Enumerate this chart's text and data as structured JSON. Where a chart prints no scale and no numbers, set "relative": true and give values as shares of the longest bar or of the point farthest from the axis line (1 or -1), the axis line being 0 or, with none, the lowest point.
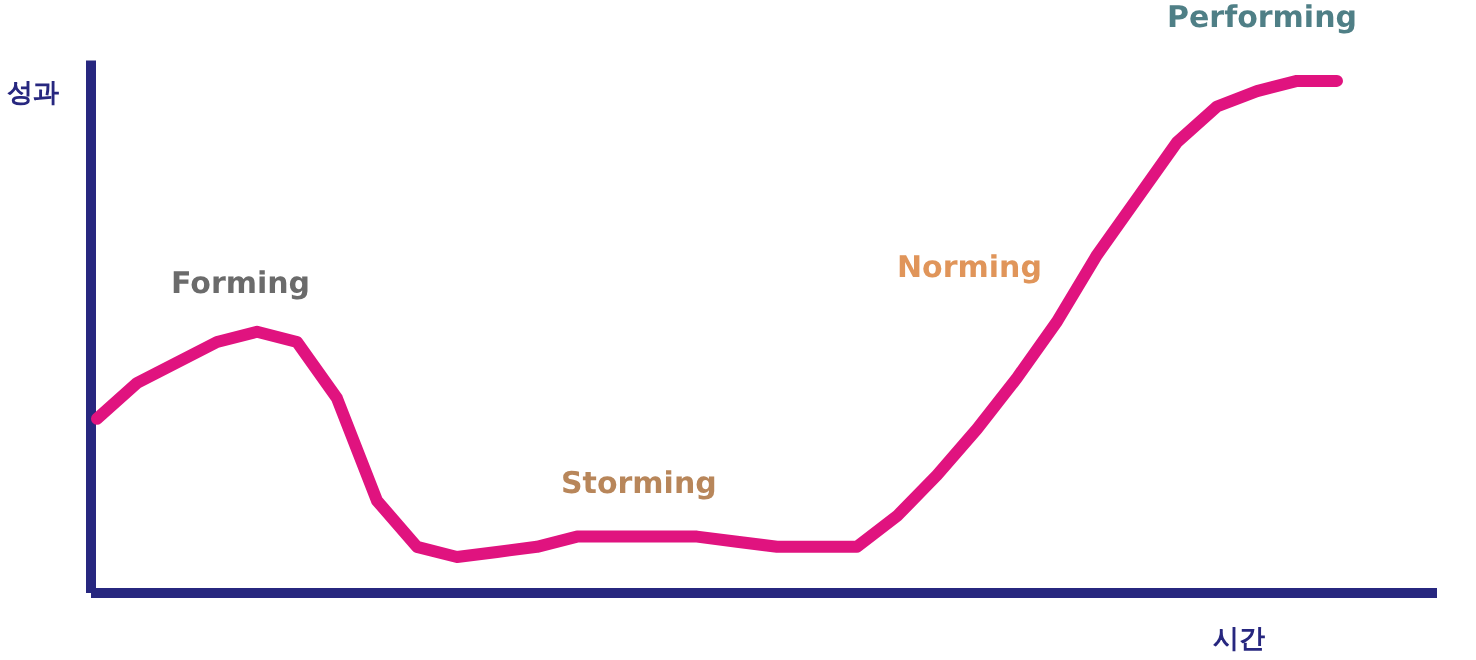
{
  "chart_data": {
    "type": "line",
    "relative": true,
    "xlabel": "시간",
    "ylabel": "성과",
    "categories": [
      null,
      null,
      null,
      null,
      null,
      null,
      null,
      null,
      null,
      null,
      null,
      null,
      null,
      null,
      null,
      null,
      null,
      null,
      null,
      null,
      null,
      null,
      null,
      null,
      null,
      null,
      null,
      null,
      null,
      null,
      null,
      null
    ],
    "series": [
      {
        "color": "#e0137f",
        "values": [
          0.34,
          0.41,
          0.45,
          0.49,
          0.51,
          0.49,
          0.38,
          0.18,
          0.09,
          0.07,
          0.08,
          0.09,
          0.11,
          0.11,
          0.11,
          0.11,
          0.1,
          0.09,
          0.09,
          0.09,
          0.15,
          0.23,
          0.32,
          0.42,
          0.53,
          0.66,
          0.77,
          0.88,
          0.95,
          0.98,
          1.0,
          1.0
        ]
      }
    ],
    "annotations": [
      "Forming",
      "Storming",
      "Norming",
      "Performing"
    ],
    "grid": false,
    "marker": "none",
    "line_style": "solid"
  }
}
